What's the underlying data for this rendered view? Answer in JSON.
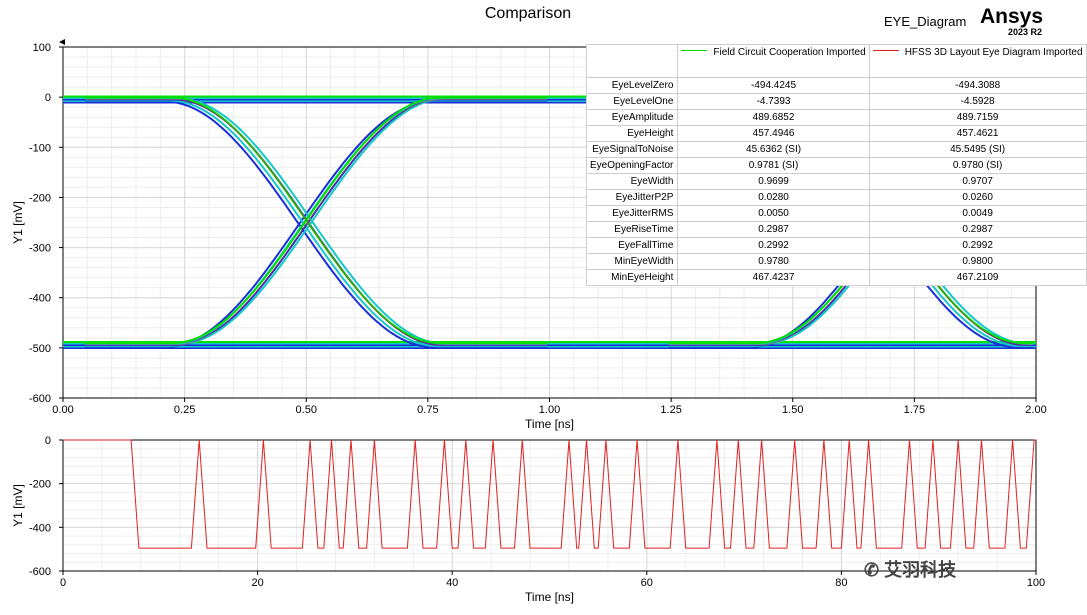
{
  "header": {
    "title": "Comparison",
    "plot_name": "EYE_Diagram",
    "brand": "Ansys",
    "version": "2023 R2"
  },
  "watermark": "艾羽科技",
  "colors": {
    "blue": "#1b2fd9",
    "cyan": "#14c8c8",
    "green": "#00e000",
    "red": "#e02020",
    "grid": "#d8d8d8"
  },
  "chart_data": [
    {
      "type": "line",
      "title": "Comparison",
      "xlabel": "Time [ns]",
      "ylabel": "Y1 [mV]",
      "xlim": [
        0,
        2
      ],
      "ylim": [
        -600,
        100
      ],
      "xticks": [
        "0.00",
        "0.25",
        "0.50",
        "0.75",
        "1.00",
        "1.25",
        "1.50",
        "1.75",
        "2.00"
      ],
      "yticks": [
        "100",
        "0",
        "-100",
        "-200",
        "-300",
        "-400",
        "-500",
        "-600"
      ],
      "grid": true,
      "series": [
        {
          "name": "Field Circuit Cooperation Imported",
          "color": "#00e000"
        },
        {
          "name": "HFSS 3D Layout Eye Diagram Imported",
          "color": "#e02020"
        }
      ],
      "eye": {
        "level_high": -4.7,
        "level_low": -494.4,
        "crossing_1": 0.5,
        "crossing_2": 1.7,
        "transition_width": 0.55
      },
      "table": {
        "columns": [
          "Field  Circuit  Cooperation Imported",
          "HFSS 3D Layout Eye Diagram Imported"
        ],
        "rows": [
          {
            "name": "EyeLevelZero",
            "v1": "-494.4245",
            "v2": "-494.3088"
          },
          {
            "name": "EyeLevelOne",
            "v1": "-4.7393",
            "v2": "-4.5928"
          },
          {
            "name": "EyeAmplitude",
            "v1": "489.6852",
            "v2": "489.7159"
          },
          {
            "name": "EyeHeight",
            "v1": "457.4946",
            "v2": "457.4621"
          },
          {
            "name": "EyeSignalToNoise",
            "v1": "45.6362 (SI)",
            "v2": "45.5495 (SI)"
          },
          {
            "name": "EyeOpeningFactor",
            "v1": "0.9781 (SI)",
            "v2": "0.9780 (SI)"
          },
          {
            "name": "EyeWidth",
            "v1": "0.9699",
            "v2": "0.9707"
          },
          {
            "name": "EyeJitterP2P",
            "v1": "0.0280",
            "v2": "0.0260"
          },
          {
            "name": "EyeJitterRMS",
            "v1": "0.0050",
            "v2": "0.0049"
          },
          {
            "name": "EyeRiseTime",
            "v1": "0.2987",
            "v2": "0.2987"
          },
          {
            "name": "EyeFallTime",
            "v1": "0.2992",
            "v2": "0.2992"
          },
          {
            "name": "MinEyeWidth",
            "v1": "0.9780",
            "v2": "0.9800"
          },
          {
            "name": "MinEyeHeight",
            "v1": "467.4237",
            "v2": "467.2109"
          }
        ]
      }
    },
    {
      "type": "line",
      "xlabel": "Time [ns]",
      "ylabel": "Y1 [mV]",
      "xlim": [
        0,
        100
      ],
      "ylim": [
        -600,
        0
      ],
      "xticks": [
        "0",
        "20",
        "40",
        "60",
        "80",
        "100"
      ],
      "yticks": [
        "0",
        "-200",
        "-400",
        "-600"
      ],
      "grid": true,
      "series": [
        {
          "name": "HFSS 3D Layout Eye Diagram Imported",
          "color": "#e02020",
          "high": 0,
          "low": -495,
          "bit_period": 1.2,
          "x_start": 0,
          "initial_level": "high",
          "transitions": [
            7.0,
            13.2,
            14.0,
            19.8,
            20.6,
            24.6,
            25.4,
            26.8,
            27.6,
            28.8,
            29.6,
            31.2,
            32.0,
            35.4,
            36.2,
            38.4,
            39.2,
            40.6,
            41.4,
            43.4,
            44.2,
            46.4,
            47.2,
            51.2,
            52.0,
            53.0,
            53.8,
            55.0,
            55.8,
            58.2,
            59.0,
            62.4,
            63.2,
            66.4,
            67.2,
            68.6,
            69.4,
            71.0,
            71.8,
            74.4,
            75.2,
            77.4,
            78.2,
            80.0,
            80.8,
            82.0,
            82.8,
            86.2,
            87.0,
            88.6,
            89.4,
            91.2,
            92.0,
            93.6,
            94.4,
            96.8,
            97.6,
            99.0
          ]
        }
      ]
    }
  ]
}
